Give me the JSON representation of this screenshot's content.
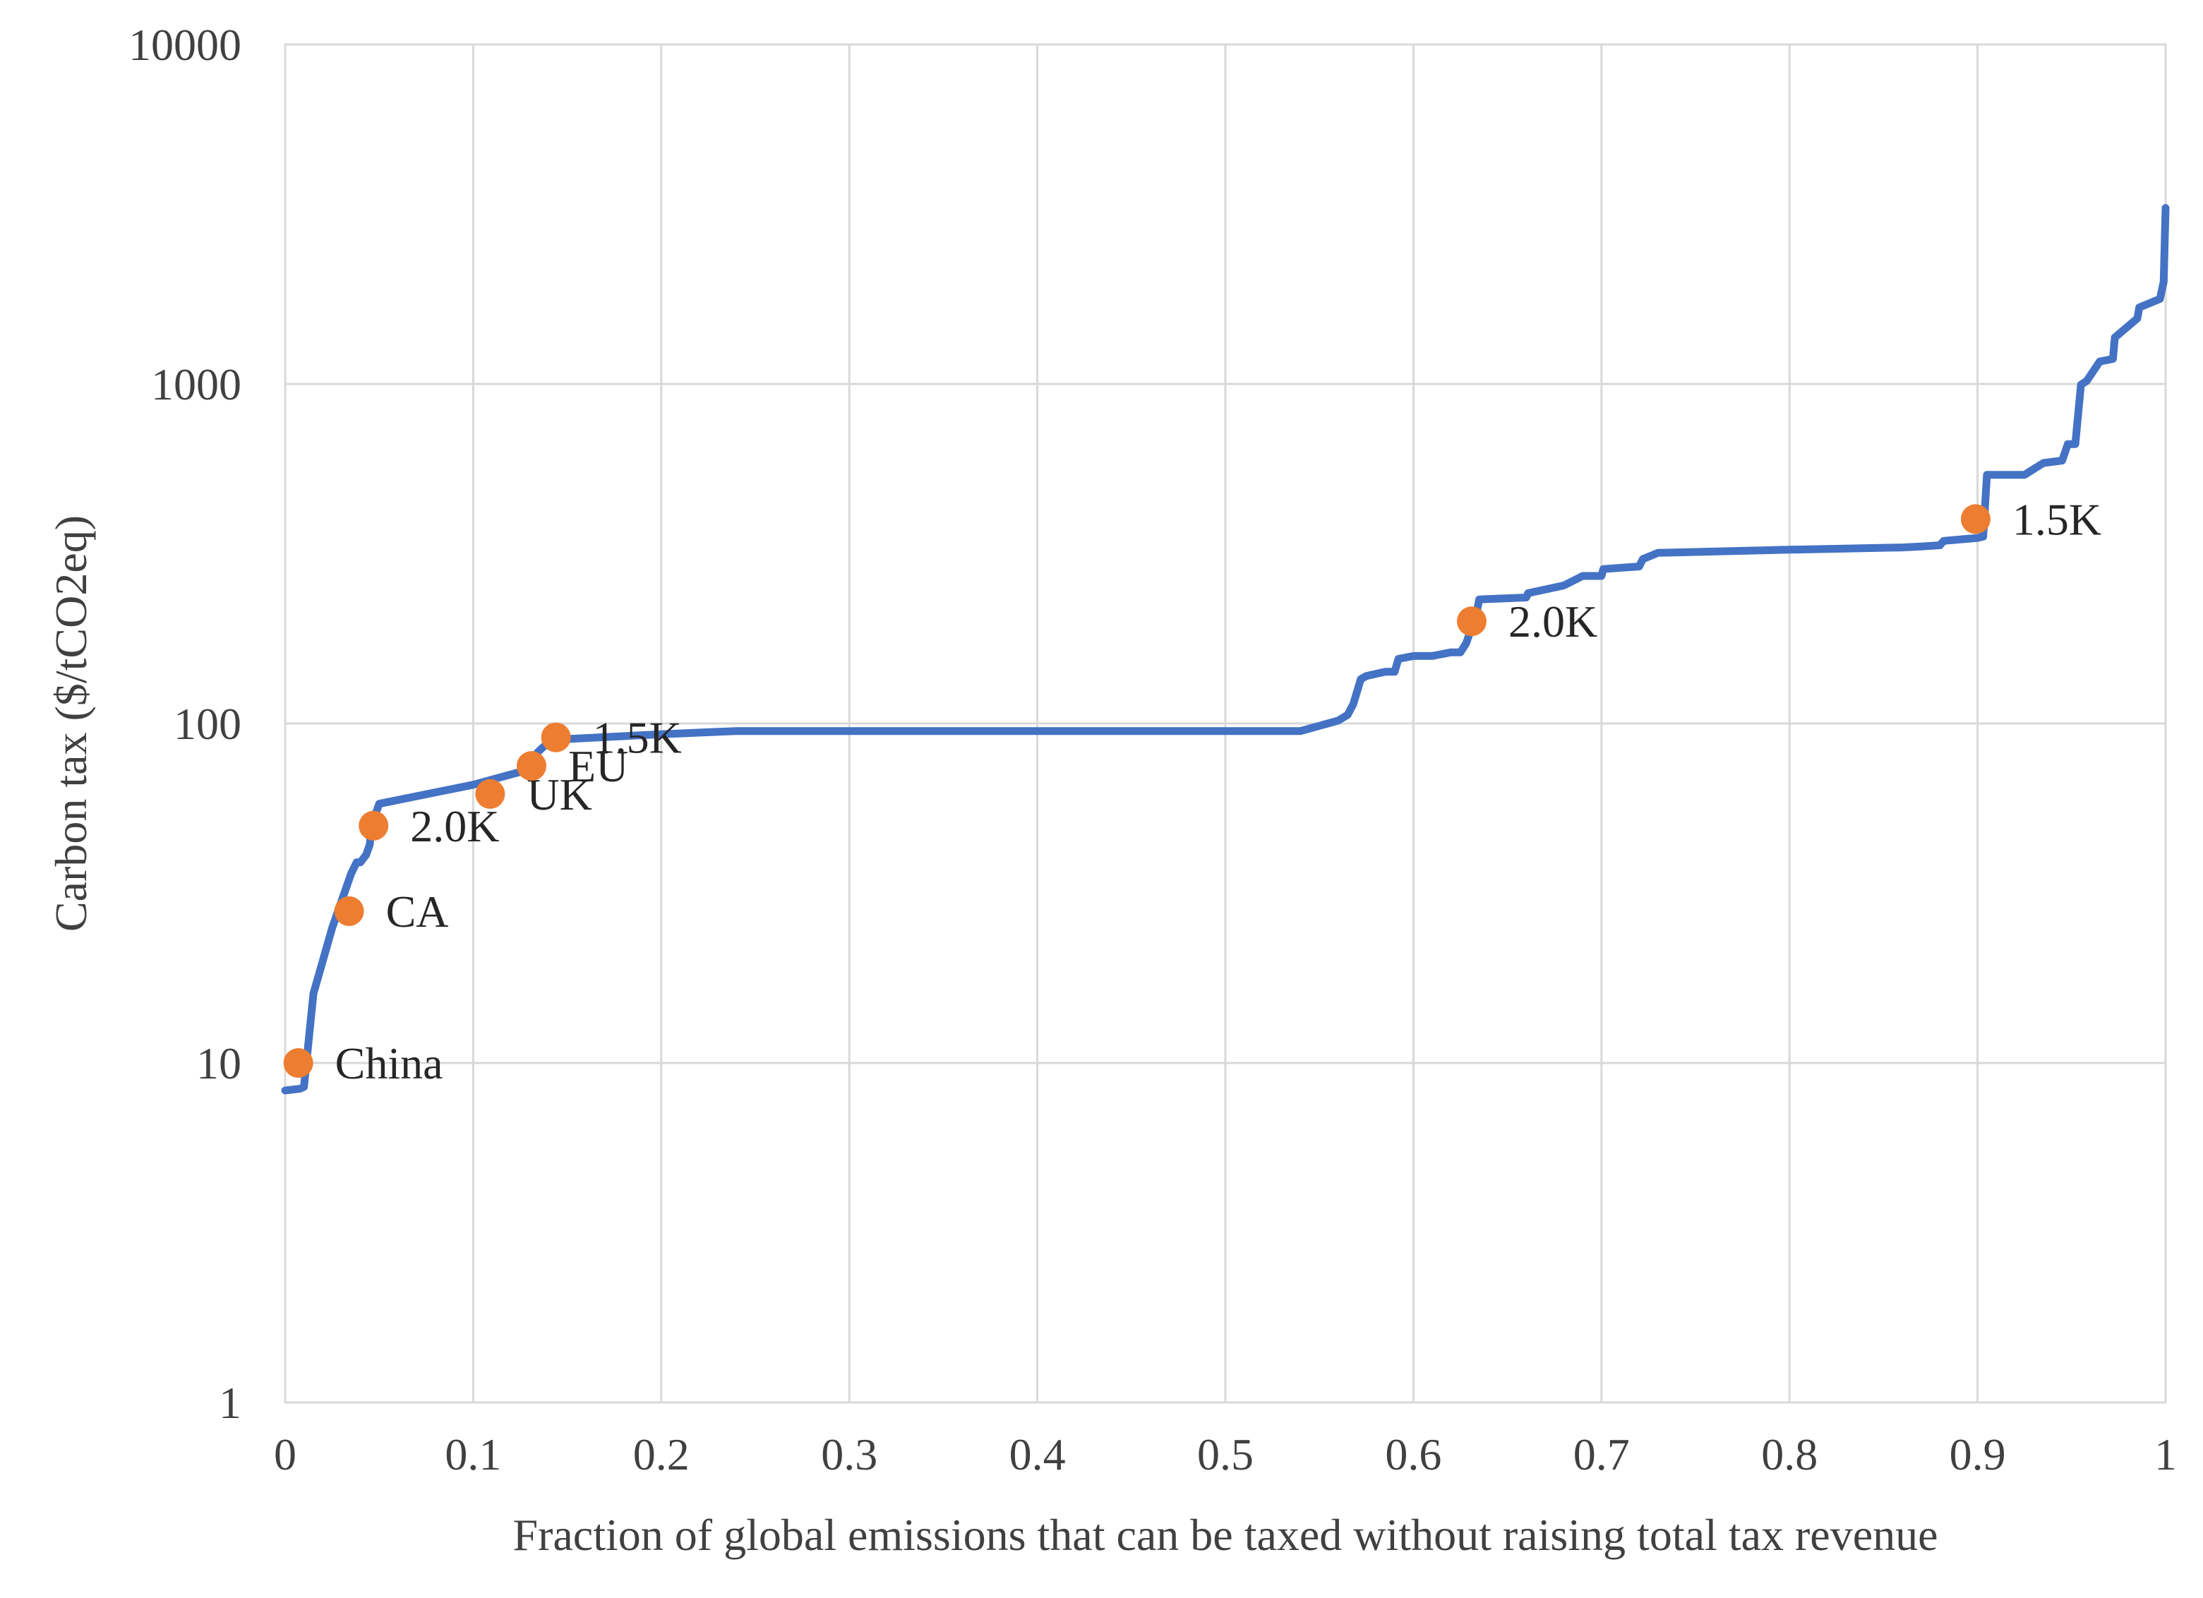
{
  "chart_data": {
    "type": "line",
    "title": "",
    "xlabel": "Fraction of global emissions that can be taxed without raising total tax revenue",
    "ylabel": "Carbon tax ($/tCO2eq)",
    "xlim": [
      0,
      1
    ],
    "ylim": [
      1,
      10000
    ],
    "yscale": "log",
    "grid": true,
    "legend": "none",
    "x_ticks": [
      0,
      0.1,
      0.2,
      0.3,
      0.4,
      0.5,
      0.6,
      0.7,
      0.8,
      0.9,
      1
    ],
    "x_tick_labels": [
      "0",
      "0.1",
      "0.2",
      "0.3",
      "0.4",
      "0.5",
      "0.6",
      "0.7",
      "0.8",
      "0.9",
      "1"
    ],
    "y_ticks": [
      1,
      10,
      100,
      1000,
      10000
    ],
    "y_tick_labels": [
      "1",
      "10",
      "100",
      "1000",
      "10000"
    ],
    "colors": {
      "line": "#4472c4",
      "markers": "#ed7d31",
      "grid": "#d9d9d9",
      "text": "#404040"
    },
    "series": [
      {
        "style": "line",
        "x": [
          0,
          0.008,
          0.01,
          0.015,
          0.02,
          0.025,
          0.03,
          0.035,
          0.038,
          0.04,
          0.043,
          0.045,
          0.046,
          0.048,
          0.05,
          0.1,
          0.125,
          0.135,
          0.14,
          0.15,
          0.2,
          0.24,
          0.3,
          0.4,
          0.5,
          0.54,
          0.56,
          0.565,
          0.568,
          0.572,
          0.575,
          0.585,
          0.59,
          0.592,
          0.6,
          0.61,
          0.62,
          0.625,
          0.628,
          0.63,
          0.632,
          0.635,
          0.66,
          0.661,
          0.68,
          0.69,
          0.7,
          0.701,
          0.72,
          0.722,
          0.73,
          0.8,
          0.86,
          0.87,
          0.88,
          0.882,
          0.9,
          0.903,
          0.905,
          0.925,
          0.935,
          0.945,
          0.948,
          0.952,
          0.955,
          0.958,
          0.965,
          0.972,
          0.973,
          0.985,
          0.986,
          0.997,
          0.999,
          1.0
        ],
        "y": [
          8.3,
          8.4,
          8.5,
          16,
          20,
          25,
          30,
          36,
          39,
          39,
          41,
          44,
          52,
          54,
          58,
          66,
          72,
          83,
          88,
          90,
          93,
          95,
          95,
          95,
          95,
          95,
          102,
          106,
          114,
          135,
          138,
          142,
          142,
          155,
          158,
          158,
          162,
          162,
          172,
          185,
          190,
          232,
          235,
          242,
          255,
          272,
          272,
          285,
          290,
          305,
          318,
          325,
          330,
          332,
          335,
          345,
          352,
          355,
          540,
          540,
          585,
          595,
          665,
          665,
          995,
          1020,
          1165,
          1185,
          1370,
          1560,
          1680,
          1780,
          2000,
          3300
        ]
      },
      {
        "style": "markers",
        "x": [
          0.007,
          0.034,
          0.047,
          0.109,
          0.131,
          0.144,
          0.631,
          0.899
        ],
        "y": [
          10,
          28,
          50,
          62,
          75,
          91,
          200,
          400
        ],
        "labels": [
          "China",
          "CA",
          "2.0K",
          "UK",
          "EU",
          "1.5K",
          "2.0K",
          "1.5K"
        ]
      }
    ]
  }
}
